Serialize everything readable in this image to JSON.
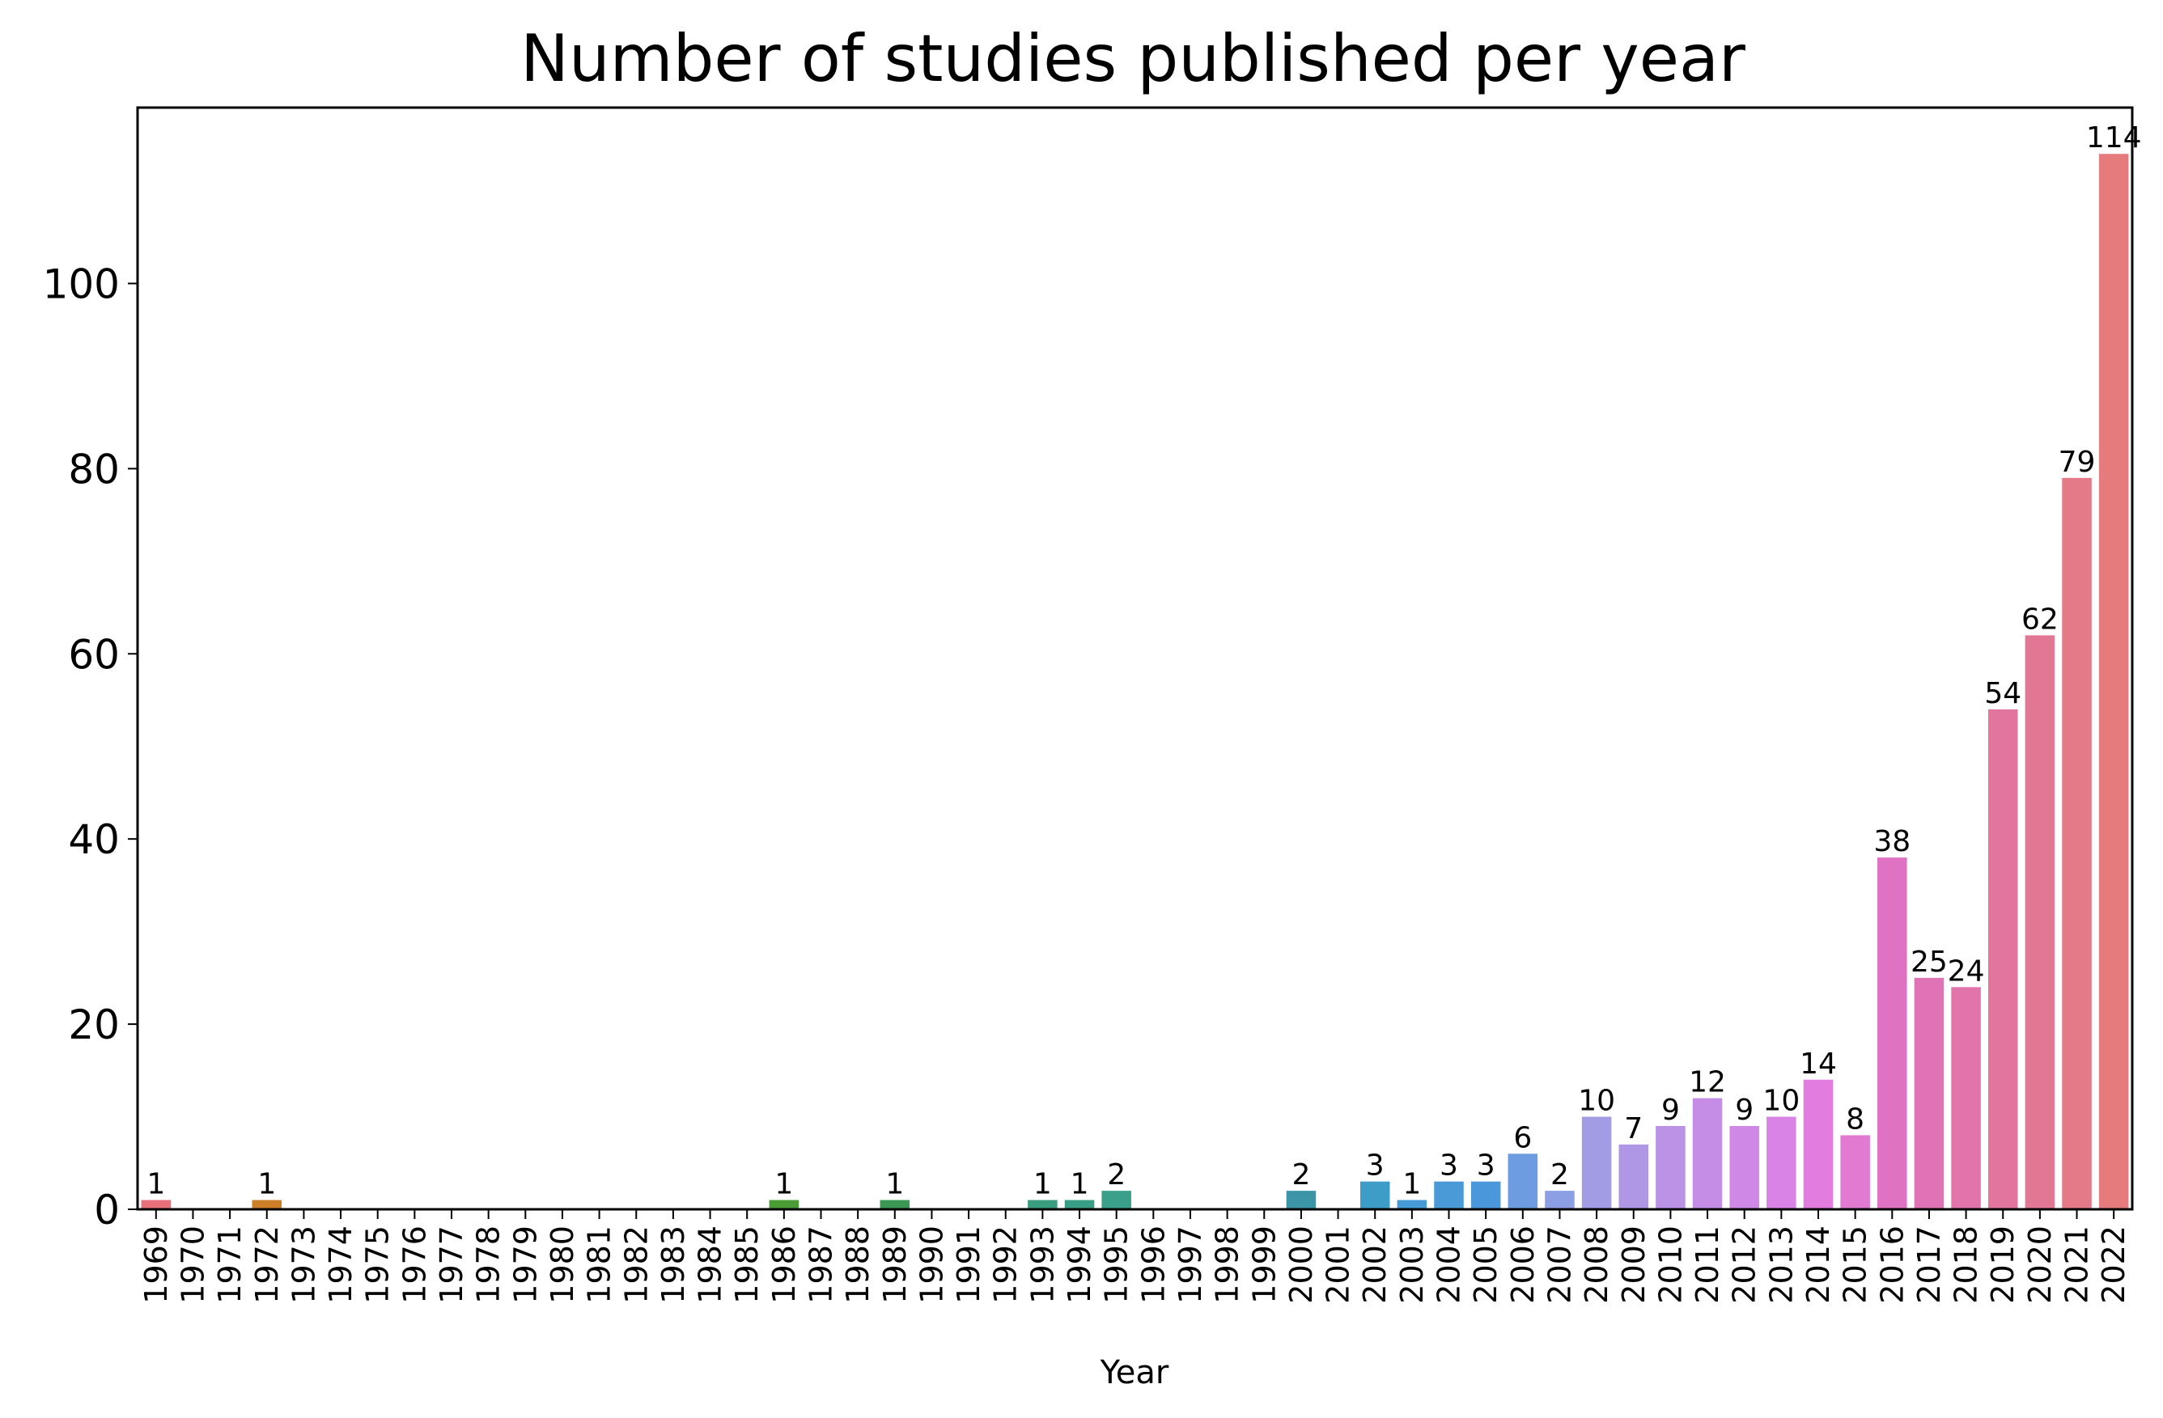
{
  "chart_data": {
    "type": "bar",
    "title": "Number of studies published per year",
    "xlabel": "Year",
    "ylabel": "",
    "ylim": [
      0,
      119
    ],
    "yticks": [
      0,
      20,
      40,
      60,
      80,
      100
    ],
    "grid": false,
    "legend": "none",
    "categories": [
      "1969",
      "1970",
      "1971",
      "1972",
      "1973",
      "1974",
      "1975",
      "1976",
      "1977",
      "1978",
      "1979",
      "1980",
      "1981",
      "1982",
      "1983",
      "1984",
      "1985",
      "1986",
      "1987",
      "1988",
      "1989",
      "1990",
      "1991",
      "1992",
      "1993",
      "1994",
      "1995",
      "1996",
      "1997",
      "1998",
      "1999",
      "2000",
      "2001",
      "2002",
      "2003",
      "2004",
      "2005",
      "2006",
      "2007",
      "2008",
      "2009",
      "2010",
      "2011",
      "2012",
      "2013",
      "2014",
      "2015",
      "2016",
      "2017",
      "2018",
      "2019",
      "2020",
      "2021",
      "2022"
    ],
    "values": [
      1,
      0,
      0,
      1,
      0,
      0,
      0,
      0,
      0,
      0,
      0,
      0,
      0,
      0,
      0,
      0,
      0,
      1,
      0,
      0,
      1,
      0,
      0,
      0,
      1,
      1,
      2,
      0,
      0,
      0,
      0,
      2,
      0,
      3,
      1,
      3,
      3,
      6,
      2,
      10,
      7,
      9,
      12,
      9,
      10,
      14,
      8,
      38,
      25,
      24,
      54,
      62,
      79,
      114
    ],
    "colors": [
      "#e8707a",
      "#e6703f",
      "#d97a2a",
      "#cd8028",
      "#c1862a",
      "#b48b2c",
      "#a78f2d",
      "#99932f",
      "#8a972f",
      "#7a9a30",
      "#699c31",
      "#559f31",
      "#3ca233",
      "#36a14d",
      "#37a05e",
      "#389e6b",
      "#399d76",
      "#4a9c35",
      "#3a9b86",
      "#3a9a8f",
      "#3b9854",
      "#3b97a0",
      "#3c96a8",
      "#3d95b0",
      "#3a9d80",
      "#389e85",
      "#3aa08a",
      "#3e93b9",
      "#3f92c1",
      "#4190c9",
      "#438ed1",
      "#3b95a6",
      "#4a8dd6",
      "#3d9dc6",
      "#469ad6",
      "#4a9ad8",
      "#4b97dc",
      "#6e9ce0",
      "#8c9fe4",
      "#a29ce5",
      "#b097e6",
      "#ba92e6",
      "#c58de6",
      "#d088e6",
      "#da83e6",
      "#e27ddf",
      "#e27ad2",
      "#e072c3",
      "#e073b6",
      "#e174aa",
      "#e1759e",
      "#e27793",
      "#e47987",
      "#e57b7d"
    ]
  }
}
